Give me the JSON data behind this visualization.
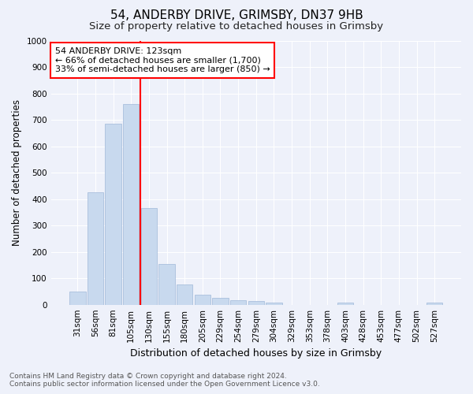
{
  "title1": "54, ANDERBY DRIVE, GRIMSBY, DN37 9HB",
  "title2": "Size of property relative to detached houses in Grimsby",
  "xlabel": "Distribution of detached houses by size in Grimsby",
  "ylabel": "Number of detached properties",
  "footer1": "Contains HM Land Registry data © Crown copyright and database right 2024.",
  "footer2": "Contains public sector information licensed under the Open Government Licence v3.0.",
  "categories": [
    "31sqm",
    "56sqm",
    "81sqm",
    "105sqm",
    "130sqm",
    "155sqm",
    "180sqm",
    "205sqm",
    "229sqm",
    "254sqm",
    "279sqm",
    "304sqm",
    "329sqm",
    "353sqm",
    "378sqm",
    "403sqm",
    "428sqm",
    "453sqm",
    "477sqm",
    "502sqm",
    "527sqm"
  ],
  "values": [
    50,
    425,
    685,
    760,
    365,
    153,
    77,
    37,
    27,
    18,
    13,
    7,
    0,
    0,
    0,
    9,
    0,
    0,
    0,
    0,
    9
  ],
  "bar_color": "#c8d9ee",
  "bar_edge_color": "#a0b8d8",
  "vline_color": "red",
  "vline_x_index": 3.5,
  "annotation_text": "54 ANDERBY DRIVE: 123sqm\n← 66% of detached houses are smaller (1,700)\n33% of semi-detached houses are larger (850) →",
  "annotation_box_color": "white",
  "annotation_box_edge": "red",
  "ylim": [
    0,
    1000
  ],
  "yticks": [
    0,
    100,
    200,
    300,
    400,
    500,
    600,
    700,
    800,
    900,
    1000
  ],
  "bg_color": "#eef1fa",
  "plot_bg_color": "#eef1fa",
  "grid_color": "white",
  "title1_fontsize": 11,
  "title2_fontsize": 9.5,
  "xlabel_fontsize": 9,
  "ylabel_fontsize": 8.5,
  "tick_fontsize": 7.5,
  "annotation_fontsize": 8,
  "footer_fontsize": 6.5
}
